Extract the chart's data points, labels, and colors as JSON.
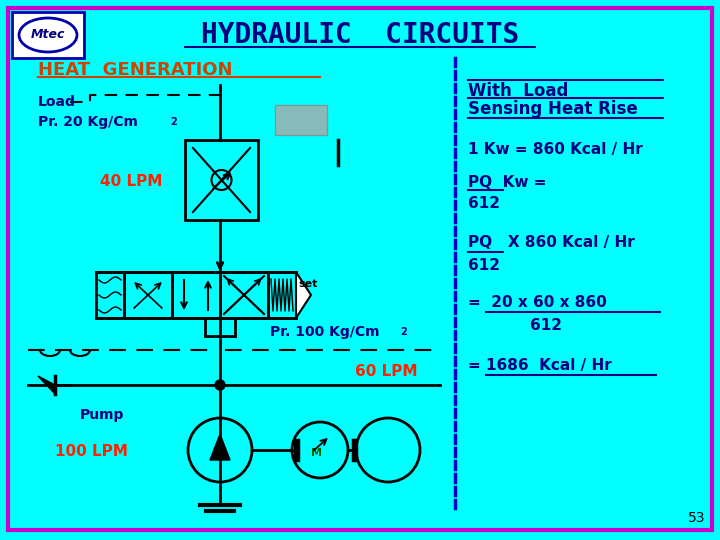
{
  "bg_color": "#00FFFF",
  "border_color": "#CC00CC",
  "title": "HYDRAULIC  CIRCUITS",
  "title_color": "#000080",
  "title_fontsize": 20,
  "heat_gen_text": "HEAT  GENERATION",
  "heat_gen_color": "#CC4400",
  "load_text": "Load",
  "load_color": "#000080",
  "pr20_text": "Pr. 20 Kg/Cm",
  "pr20_sup": "2",
  "lpm40_text": "40 LPM",
  "lpm40_color": "#FF2200",
  "set_text": "set",
  "pr100_text": "Pr. 100 Kg/Cm",
  "pr100_sup": "2",
  "lpm60_text": "60 LPM",
  "lpm60_color": "#FF2200",
  "pump_text": "Pump",
  "pump_color": "#000080",
  "lpm100_text": "100 LPM",
  "lpm100_color": "#FF2200",
  "m_text": "M",
  "m_color": "#006600",
  "right_title1": "With  Load",
  "right_title2": "Sensing Heat Rise",
  "right_title_color": "#000080",
  "formula1": "1 Kw = 860 Kcal / Hr",
  "formula2_line1": "PQ  Kw =",
  "formula2_line2": "612",
  "formula3_line1": "PQ   X 860 Kcal / Hr",
  "formula3_line2": "612",
  "formula4_line1": "=  20 x 60 x 860",
  "formula4_line2": "612",
  "formula5": "= 1686  Kcal / Hr",
  "formula_color": "#000080",
  "dashed_divider_color": "#0000CC",
  "line_color": "#000000",
  "page_num": "53",
  "logo_color": "#000080",
  "logo_bg": "#FFFFFF"
}
